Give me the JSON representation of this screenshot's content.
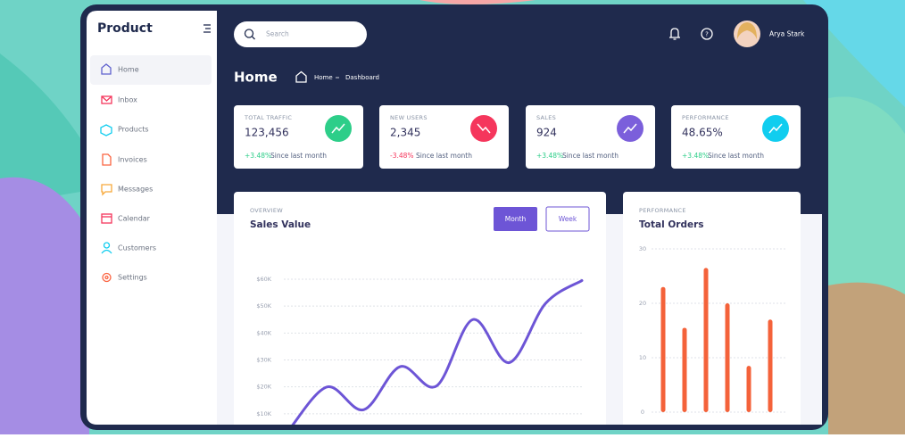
{
  "sidebar": {
    "brand": "Product",
    "nav": [
      "Home",
      "Inbox",
      "Products",
      "Invoices",
      "Messages",
      "Calendar",
      "Customers",
      "Settings"
    ]
  },
  "header": {
    "search_placeholder": "Search",
    "user": "Arya Stark"
  },
  "page": {
    "title": "Home",
    "breadcrumb": [
      "Home",
      "Dashboard"
    ]
  },
  "stats": [
    {
      "label": "TOTAL TRAFFIC",
      "value": "123,456",
      "change": "+3.48%",
      "note": "Since last month",
      "color": "#2dce89"
    },
    {
      "label": "NEW USERS",
      "value": "2,345",
      "change": "-3.48%",
      "note": "Since last month",
      "color": "#f5365c"
    },
    {
      "label": "SALES",
      "value": "924",
      "change": "+3.48%",
      "note": "Since last month",
      "color": "#7b5fdb"
    },
    {
      "label": "PERFORMANCE",
      "value": "48.65%",
      "change": "+3.48%",
      "note": "Since last month",
      "color": "#11cdef"
    }
  ],
  "chart_data": [
    {
      "type": "line",
      "subtitle": "OVERVIEW",
      "title": "Sales Value",
      "buttons": [
        "Month",
        "Week"
      ],
      "values": [
        5,
        20,
        11.5,
        27.5,
        20.3,
        45,
        29,
        51,
        59.5
      ],
      "color": "#6d55d6",
      "ylim": [
        0,
        60
      ],
      "yticks": [
        {
          "value": 10,
          "label": "$10K"
        },
        {
          "value": 20,
          "label": "$20K"
        },
        {
          "value": 30,
          "label": "$30K"
        },
        {
          "value": 40,
          "label": "$40K"
        },
        {
          "value": 50,
          "label": "$50K"
        },
        {
          "value": 60,
          "label": "$60K"
        }
      ],
      "grid": true
    },
    {
      "type": "bar",
      "subtitle": "PERFORMANCE",
      "title": "Total Orders",
      "values": [
        23,
        15.5,
        26.5,
        20,
        8.5,
        17
      ],
      "color": "#f4623a",
      "ylim": [
        0,
        30
      ],
      "yticks": [
        0,
        10,
        20,
        30
      ],
      "grid": true
    }
  ]
}
